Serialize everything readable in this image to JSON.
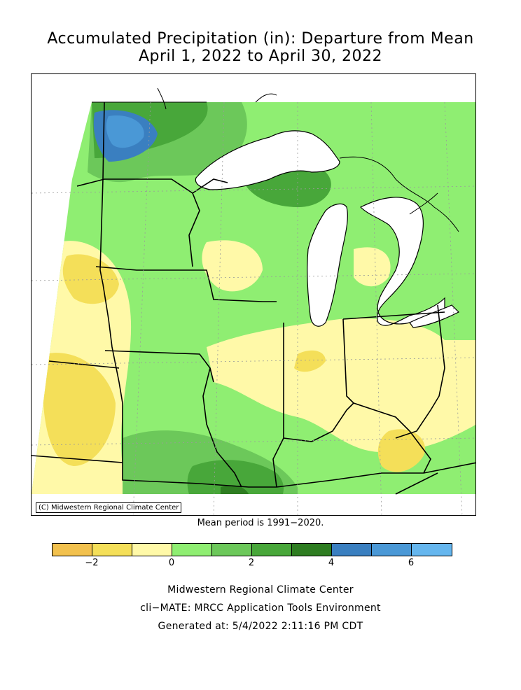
{
  "title_line1": "Accumulated Precipitation (in): Departure from Mean",
  "title_line2": "April 1, 2022 to April 30, 2022",
  "copyright": "(C) Midwestern Regional Climate Center",
  "mean_note": "Mean period is 1991−2020.",
  "legend": {
    "colors": [
      "#f2c14e",
      "#f4df59",
      "#fff9a8",
      "#8fee72",
      "#6cc85a",
      "#48a73a",
      "#2e7d21",
      "#3a7fc0",
      "#4a98d6",
      "#65b6ee"
    ],
    "ticks": [
      {
        "label": "−2",
        "value": -2
      },
      {
        "label": "0",
        "value": 0
      },
      {
        "label": "2",
        "value": 2
      },
      {
        "label": "4",
        "value": 4
      },
      {
        "label": "6",
        "value": 6
      }
    ]
  },
  "footer": {
    "line1": "Midwestern Regional Climate Center",
    "line2": "cli−MATE: MRCC Application Tools Environment",
    "line3": "Generated at: 5/4/2022 2:11:16 PM CDT"
  }
}
